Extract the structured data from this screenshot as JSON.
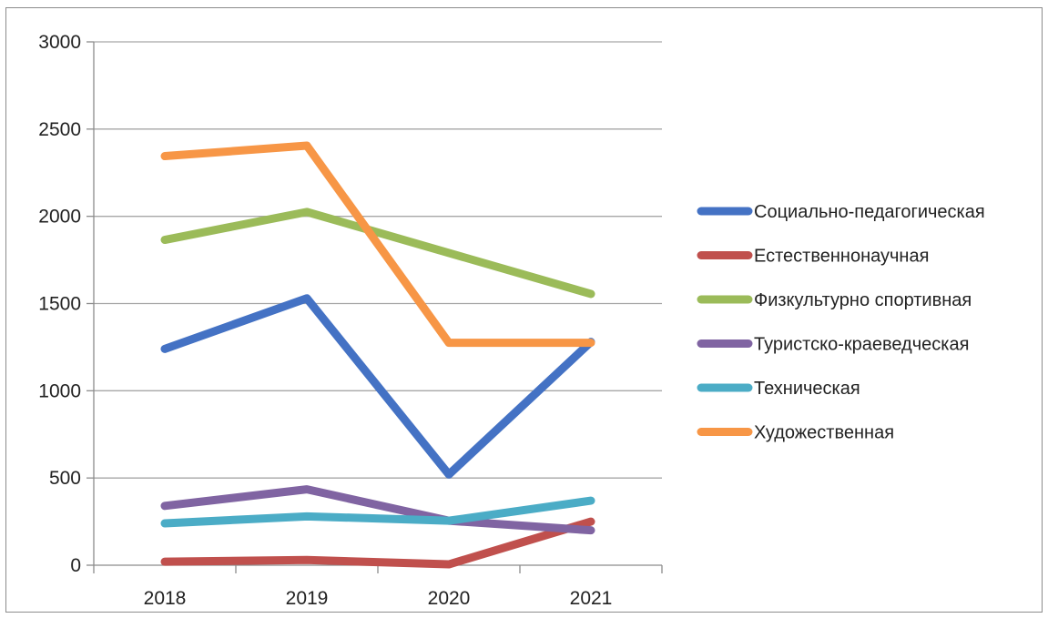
{
  "chart_data": {
    "type": "line",
    "categories": [
      "2018",
      "2019",
      "2020",
      "2021"
    ],
    "ylim": [
      0,
      3000
    ],
    "yticks": [
      0,
      500,
      1000,
      1500,
      2000,
      2500,
      3000
    ],
    "grid": "horizontal",
    "legend_position": "right",
    "title": "",
    "xlabel": "",
    "ylabel": "",
    "series": [
      {
        "name": "Социально-педагогическая",
        "color": "#4472C4",
        "values": [
          1240,
          1530,
          520,
          1280
        ]
      },
      {
        "name": "Естественнонаучная",
        "color": "#C0504D",
        "values": [
          20,
          30,
          5,
          250
        ]
      },
      {
        "name": "Физкультурно спортивная",
        "color": "#9BBB59",
        "values": [
          1865,
          2025,
          1790,
          1555
        ]
      },
      {
        "name": "Туристско-краеведческая",
        "color": "#8064A2",
        "values": [
          340,
          435,
          255,
          200
        ]
      },
      {
        "name": "Техническая",
        "color": "#4BACC6",
        "values": [
          240,
          280,
          255,
          370
        ]
      },
      {
        "name": "Художественная",
        "color": "#F79646",
        "values": [
          2345,
          2405,
          1275,
          1275
        ]
      }
    ]
  }
}
